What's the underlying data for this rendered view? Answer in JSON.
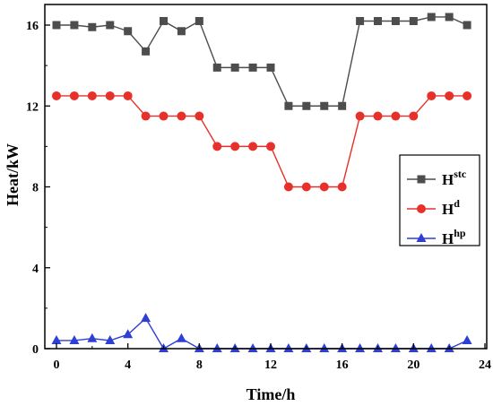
{
  "chart_data": {
    "type": "line",
    "xlabel": "Time/h",
    "ylabel": "Heat/kW",
    "xlim": [
      0,
      24
    ],
    "ylim": [
      0,
      17
    ],
    "xticks": [
      0,
      4,
      8,
      12,
      16,
      20,
      24
    ],
    "yticks": [
      0,
      4,
      8,
      12,
      16
    ],
    "grid": false,
    "legend_position": "right",
    "x": [
      0,
      1,
      2,
      3,
      4,
      5,
      6,
      7,
      8,
      9,
      10,
      11,
      12,
      13,
      14,
      15,
      16,
      17,
      18,
      19,
      20,
      21,
      22,
      23
    ],
    "series": [
      {
        "name_base": "H",
        "name_sup": "stc",
        "color": "#4d4d4d",
        "marker": "square",
        "values": [
          16,
          16,
          15.9,
          16,
          15.7,
          14.7,
          16.2,
          15.7,
          16.2,
          13.9,
          13.9,
          13.9,
          13.9,
          12,
          12,
          12,
          12,
          16.2,
          16.2,
          16.2,
          16.2,
          16.4,
          16.4,
          16
        ]
      },
      {
        "name_base": "H",
        "name_sup": "d",
        "color": "#e8302a",
        "marker": "circle",
        "values": [
          12.5,
          12.5,
          12.5,
          12.5,
          12.5,
          11.5,
          11.5,
          11.5,
          11.5,
          10,
          10,
          10,
          10,
          8,
          8,
          8,
          8,
          11.5,
          11.5,
          11.5,
          11.5,
          12.5,
          12.5,
          12.5
        ]
      },
      {
        "name_base": "H",
        "name_sup": "hp",
        "color": "#2e3fd6",
        "marker": "triangle",
        "values": [
          0.4,
          0.4,
          0.5,
          0.4,
          0.7,
          1.5,
          0,
          0.5,
          0,
          0,
          0,
          0,
          0,
          0,
          0,
          0,
          0,
          0,
          0,
          0,
          0,
          0,
          0,
          0.4
        ]
      }
    ]
  }
}
